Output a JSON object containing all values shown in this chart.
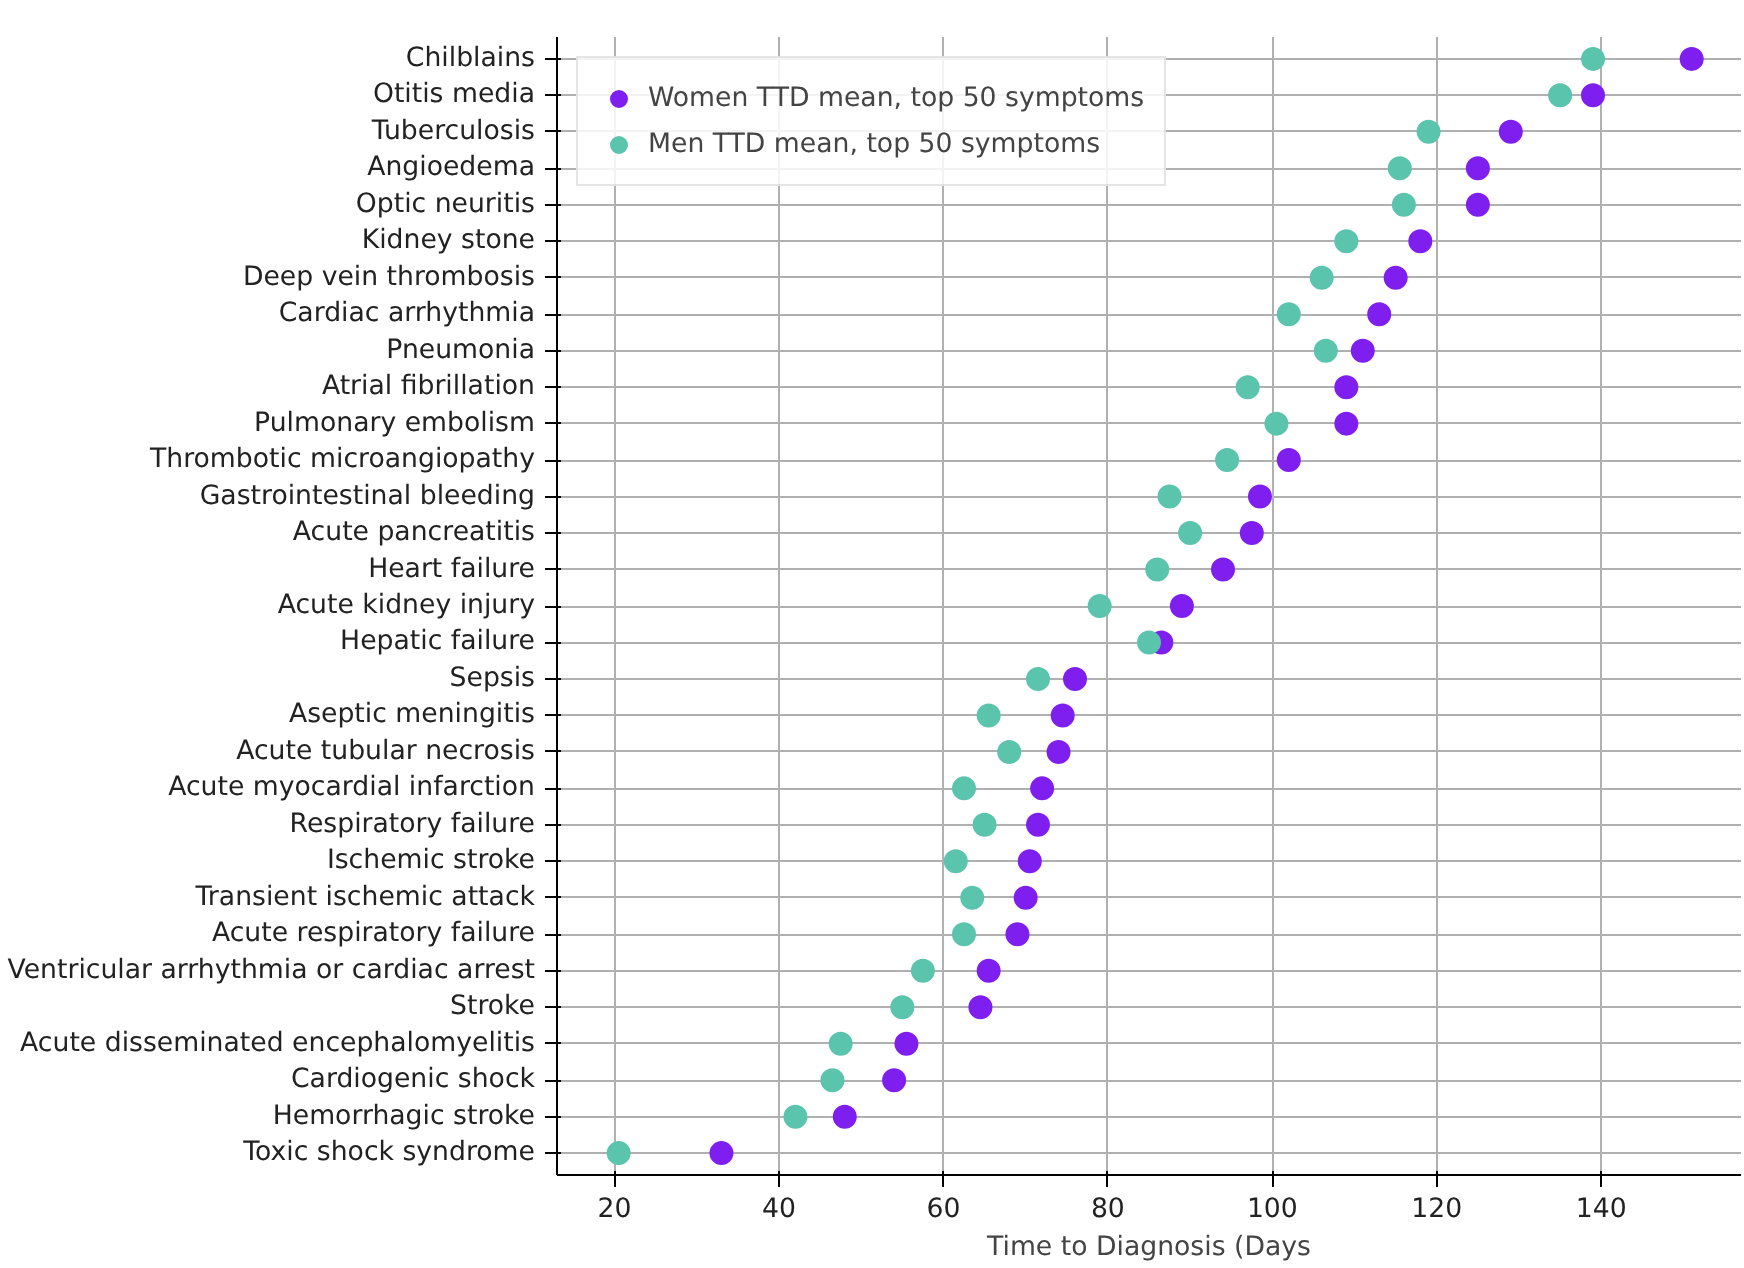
{
  "chart_data": {
    "type": "scatter",
    "xlabel": "Time to Diagnosis (Days",
    "categories": [
      "Chilblains",
      "Otitis media",
      "Tuberculosis",
      "Angioedema",
      "Optic neuritis",
      "Kidney stone",
      "Deep vein thrombosis",
      "Cardiac arrhythmia",
      "Pneumonia",
      "Atrial fibrillation",
      "Pulmonary embolism",
      "Thrombotic microangiopathy",
      "Gastrointestinal bleeding",
      "Acute pancreatitis",
      "Heart failure",
      "Acute kidney injury",
      "Hepatic failure",
      "Sepsis",
      "Aseptic meningitis",
      "Acute tubular necrosis",
      "Acute myocardial infarction",
      "Respiratory failure",
      "Ischemic stroke",
      "Transient ischemic attack",
      "Acute respiratory failure",
      "Ventricular arrhythmia or cardiac arrest",
      "Stroke",
      "Acute disseminated encephalomyelitis",
      "Cardiogenic shock",
      "Hemorrhagic stroke",
      "Toxic shock syndrome"
    ],
    "orientation": "horizontal",
    "series": [
      {
        "name": "Women TTD mean, top 50 symptoms",
        "color": "#7f1fef",
        "values": [
          151,
          139,
          129,
          125,
          125,
          118,
          115,
          113,
          111,
          109,
          109,
          102,
          98.5,
          97.5,
          94,
          89,
          86.5,
          76,
          74.5,
          74,
          72,
          71.5,
          70.5,
          70,
          69,
          65.5,
          64.5,
          55.5,
          54,
          48,
          33
        ]
      },
      {
        "name": "Men TTD mean, top 50 symptoms",
        "color": "#5bc4ad",
        "values": [
          139,
          135,
          119,
          115.5,
          116,
          109,
          106,
          102,
          106.5,
          97,
          100.5,
          94.5,
          87.5,
          90,
          86,
          79,
          85,
          71.5,
          65.5,
          68,
          62.5,
          65,
          61.5,
          63.5,
          62.5,
          57.5,
          55,
          47.5,
          46.5,
          42,
          20.5
        ]
      }
    ],
    "xlim": [
      13,
      157
    ],
    "xticks": [
      20,
      40,
      60,
      80,
      100,
      120,
      140
    ],
    "grid": true,
    "legend": "top left",
    "marker": "circle"
  }
}
